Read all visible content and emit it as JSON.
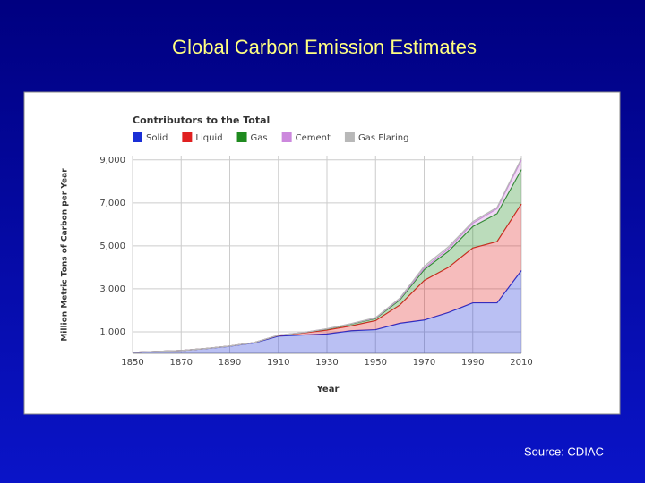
{
  "slide_title": "Global Carbon Emission Estimates",
  "source": "Source:  CDIAC",
  "chart_data": {
    "type": "stacked-area",
    "title": "Contributors to the Total",
    "x_label": "Year",
    "y_label": "Million Metric Tons of Carbon per Year",
    "x": [
      1850,
      1860,
      1870,
      1880,
      1890,
      1900,
      1910,
      1920,
      1930,
      1940,
      1950,
      1960,
      1970,
      1980,
      1990,
      2000,
      2010
    ],
    "series": [
      {
        "name": "Solid",
        "color": "#1a2fd6",
        "values": [
          50,
          90,
          130,
          220,
          330,
          480,
          800,
          850,
          900,
          1050,
          1100,
          1400,
          1550,
          1900,
          2350,
          2350,
          3850
        ]
      },
      {
        "name": "Liquid",
        "color": "#e02020",
        "values": [
          0,
          0,
          0,
          5,
          10,
          20,
          30,
          90,
          180,
          230,
          420,
          850,
          1840,
          2100,
          2550,
          2850,
          3100
        ]
      },
      {
        "name": "Gas",
        "color": "#1f8a1f",
        "values": [
          0,
          0,
          0,
          0,
          0,
          0,
          10,
          20,
          50,
          80,
          100,
          240,
          500,
          750,
          1000,
          1300,
          1600
        ]
      },
      {
        "name": "Cement",
        "color": "#cc88dd",
        "values": [
          0,
          0,
          0,
          0,
          0,
          0,
          5,
          5,
          10,
          15,
          20,
          40,
          70,
          120,
          160,
          230,
          450
        ]
      },
      {
        "name": "Gas Flaring",
        "color": "#b8b8b8",
        "values": [
          0,
          0,
          0,
          0,
          0,
          0,
          0,
          0,
          5,
          10,
          20,
          40,
          90,
          90,
          70,
          60,
          70
        ]
      }
    ],
    "xlim": [
      1850,
      2010
    ],
    "ylim": [
      0,
      9200
    ],
    "xticks": [
      1850,
      1870,
      1890,
      1910,
      1930,
      1950,
      1970,
      1990,
      2010
    ],
    "yticks": [
      {
        "value": 1000,
        "label": "1,000"
      },
      {
        "value": 3000,
        "label": "3,000"
      },
      {
        "value": 5000,
        "label": "5,000"
      },
      {
        "value": 7000,
        "label": "7,000"
      },
      {
        "value": 9000,
        "label": "9,000"
      }
    ],
    "grid": true,
    "legend": "top-left"
  }
}
